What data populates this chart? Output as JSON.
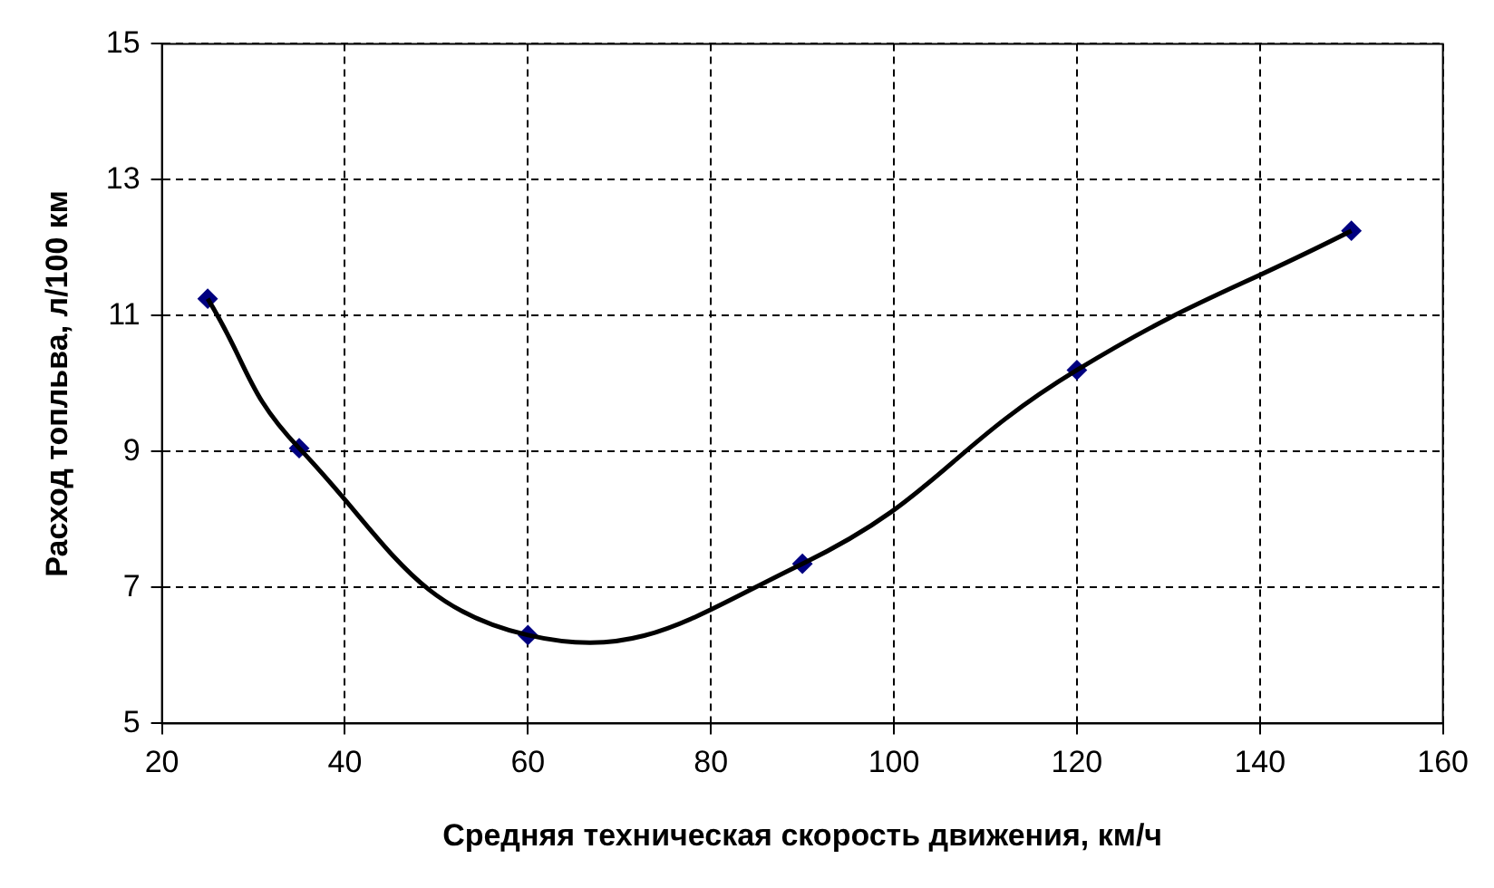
{
  "chart_data": {
    "type": "line",
    "xlabel": "Средняя техническая скорость движения, км/ч",
    "ylabel": "Расход топльва, л/100 км",
    "x": [
      25,
      35,
      60,
      90,
      120,
      150
    ],
    "series": [
      {
        "color": "#000000",
        "marker": "none",
        "values": [
          11.25,
          9.05,
          6.3,
          7.35,
          10.2,
          12.25
        ]
      },
      {
        "type": "scatter",
        "color": "#000080",
        "marker": "diamond",
        "values": [
          11.25,
          9.05,
          6.3,
          7.35,
          10.2,
          12.25
        ]
      }
    ],
    "xlim": [
      20,
      160
    ],
    "xticks": [
      20,
      40,
      60,
      80,
      100,
      120,
      140,
      160
    ],
    "ylim": [
      5,
      15
    ],
    "yticks": [
      5,
      7,
      9,
      11,
      13,
      15
    ],
    "grid": true,
    "legend": false
  }
}
